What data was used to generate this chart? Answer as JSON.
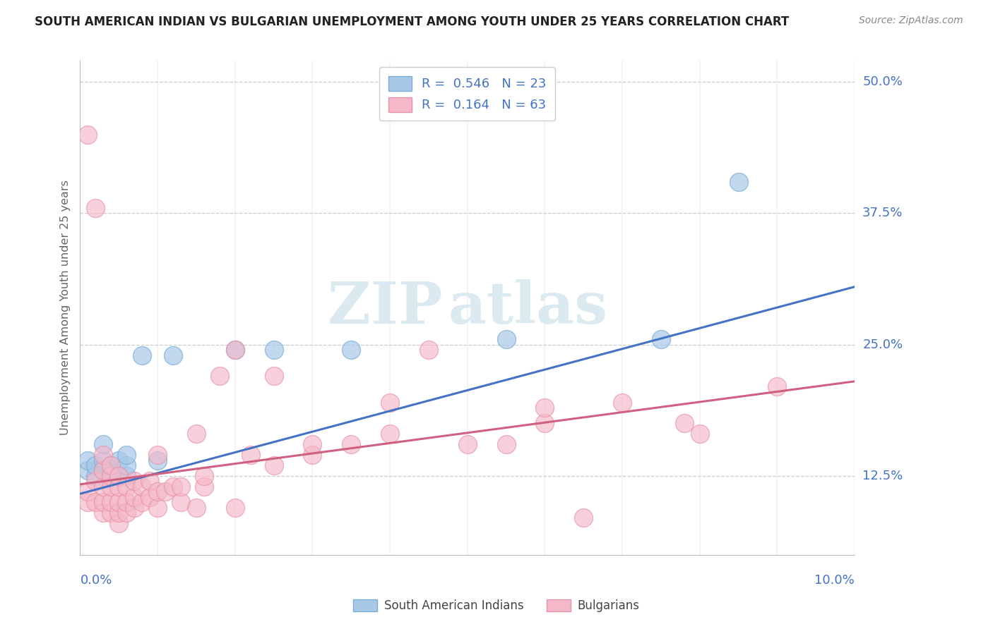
{
  "title": "SOUTH AMERICAN INDIAN VS BULGARIAN UNEMPLOYMENT AMONG YOUTH UNDER 25 YEARS CORRELATION CHART",
  "source": "Source: ZipAtlas.com",
  "ylabel": "Unemployment Among Youth under 25 years",
  "xmin": 0.0,
  "xmax": 0.1,
  "ymin": 0.05,
  "ymax": 0.52,
  "yticks": [
    0.125,
    0.25,
    0.375,
    0.5
  ],
  "ytick_labels": [
    "12.5%",
    "25.0%",
    "37.5%",
    "50.0%"
  ],
  "xtick_count": 10,
  "blue_R": 0.546,
  "blue_N": 23,
  "pink_R": 0.164,
  "pink_N": 63,
  "blue_color": "#a8c8e8",
  "pink_color": "#f4b8c8",
  "blue_edge_color": "#7aaed6",
  "pink_edge_color": "#e890a8",
  "blue_line_color": "#4472c4",
  "pink_line_color": "#d06080",
  "text_blue_color": "#4472c4",
  "text_pink_color": "#d06080",
  "axis_label_color": "#4472c4",
  "ylabel_color": "#666666",
  "title_color": "#222222",
  "source_color": "#888888",
  "grid_color": "#cccccc",
  "legend_label_blue": "South American Indians",
  "legend_label_pink": "Bulgarians",
  "blue_scatter_x": [
    0.001,
    0.001,
    0.002,
    0.002,
    0.003,
    0.003,
    0.003,
    0.004,
    0.004,
    0.005,
    0.005,
    0.006,
    0.006,
    0.006,
    0.008,
    0.01,
    0.012,
    0.02,
    0.025,
    0.035,
    0.055,
    0.075,
    0.085
  ],
  "blue_scatter_y": [
    0.13,
    0.14,
    0.125,
    0.135,
    0.13,
    0.14,
    0.155,
    0.13,
    0.135,
    0.125,
    0.14,
    0.125,
    0.135,
    0.145,
    0.24,
    0.14,
    0.24,
    0.245,
    0.245,
    0.245,
    0.255,
    0.255,
    0.405
  ],
  "pink_scatter_x": [
    0.001,
    0.001,
    0.001,
    0.002,
    0.002,
    0.002,
    0.003,
    0.003,
    0.003,
    0.003,
    0.003,
    0.004,
    0.004,
    0.004,
    0.004,
    0.004,
    0.005,
    0.005,
    0.005,
    0.005,
    0.005,
    0.006,
    0.006,
    0.006,
    0.007,
    0.007,
    0.007,
    0.008,
    0.008,
    0.009,
    0.009,
    0.01,
    0.01,
    0.01,
    0.011,
    0.012,
    0.013,
    0.013,
    0.015,
    0.015,
    0.016,
    0.016,
    0.018,
    0.02,
    0.02,
    0.022,
    0.025,
    0.025,
    0.03,
    0.03,
    0.035,
    0.04,
    0.04,
    0.045,
    0.05,
    0.055,
    0.06,
    0.06,
    0.065,
    0.07,
    0.078,
    0.08,
    0.09
  ],
  "pink_scatter_y": [
    0.1,
    0.11,
    0.45,
    0.1,
    0.12,
    0.38,
    0.09,
    0.1,
    0.115,
    0.13,
    0.145,
    0.09,
    0.1,
    0.115,
    0.125,
    0.135,
    0.08,
    0.09,
    0.1,
    0.115,
    0.125,
    0.09,
    0.1,
    0.115,
    0.095,
    0.105,
    0.12,
    0.1,
    0.115,
    0.105,
    0.12,
    0.095,
    0.11,
    0.145,
    0.11,
    0.115,
    0.1,
    0.115,
    0.095,
    0.165,
    0.115,
    0.125,
    0.22,
    0.245,
    0.095,
    0.145,
    0.135,
    0.22,
    0.145,
    0.155,
    0.155,
    0.195,
    0.165,
    0.245,
    0.155,
    0.155,
    0.175,
    0.19,
    0.085,
    0.195,
    0.175,
    0.165,
    0.21
  ],
  "blue_trend_x": [
    0.0,
    0.1
  ],
  "blue_trend_y": [
    0.108,
    0.305
  ],
  "pink_trend_x": [
    0.0,
    0.1
  ],
  "pink_trend_y": [
    0.117,
    0.215
  ]
}
